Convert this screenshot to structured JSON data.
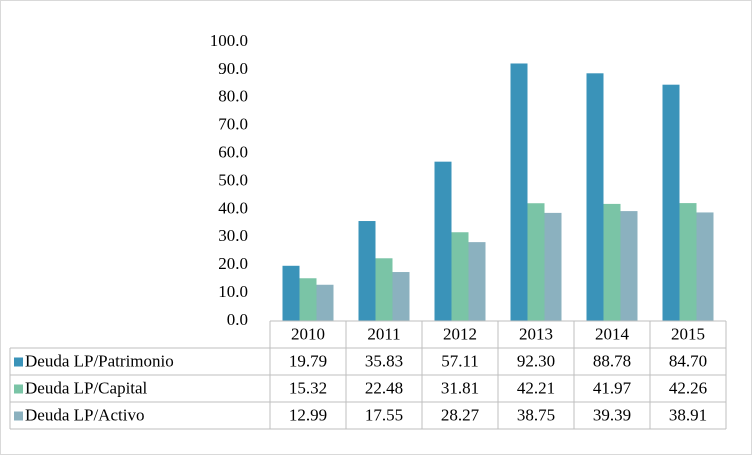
{
  "chart_data": {
    "type": "bar",
    "categories": [
      "2010",
      "2011",
      "2012",
      "2013",
      "2014",
      "2015"
    ],
    "series": [
      {
        "name": "Deuda LP/Patrimonio",
        "color": "#3a93b9",
        "values": [
          19.79,
          35.83,
          57.11,
          92.3,
          88.78,
          84.7
        ],
        "value_labels": [
          "19.79",
          "35.83",
          "57.11",
          "92.30",
          "88.78",
          "84.70"
        ]
      },
      {
        "name": "Deuda LP/Capital",
        "color": "#7ac4a6",
        "values": [
          15.32,
          22.48,
          31.81,
          42.21,
          41.97,
          42.26
        ],
        "value_labels": [
          "15.32",
          "22.48",
          "31.81",
          "42.21",
          "41.97",
          "42.26"
        ]
      },
      {
        "name": "Deuda LP/Activo",
        "color": "#8bb1bf",
        "values": [
          12.99,
          17.55,
          28.27,
          38.75,
          39.39,
          38.91
        ],
        "value_labels": [
          "12.99",
          "17.55",
          "28.27",
          "38.75",
          "39.39",
          "38.91"
        ]
      }
    ],
    "ylim": [
      0,
      100
    ],
    "yticks": [
      {
        "value": 0,
        "label": "0.0"
      },
      {
        "value": 10,
        "label": "10.0"
      },
      {
        "value": 20,
        "label": "20.0"
      },
      {
        "value": 30,
        "label": "30.0"
      },
      {
        "value": 40,
        "label": "40.0"
      },
      {
        "value": 50,
        "label": "50.0"
      },
      {
        "value": 60,
        "label": "60.0"
      },
      {
        "value": 70,
        "label": "70.0"
      },
      {
        "value": 80,
        "label": "80.0"
      },
      {
        "value": 90,
        "label": "90.0"
      },
      {
        "value": 100,
        "label": "100.0"
      }
    ]
  }
}
